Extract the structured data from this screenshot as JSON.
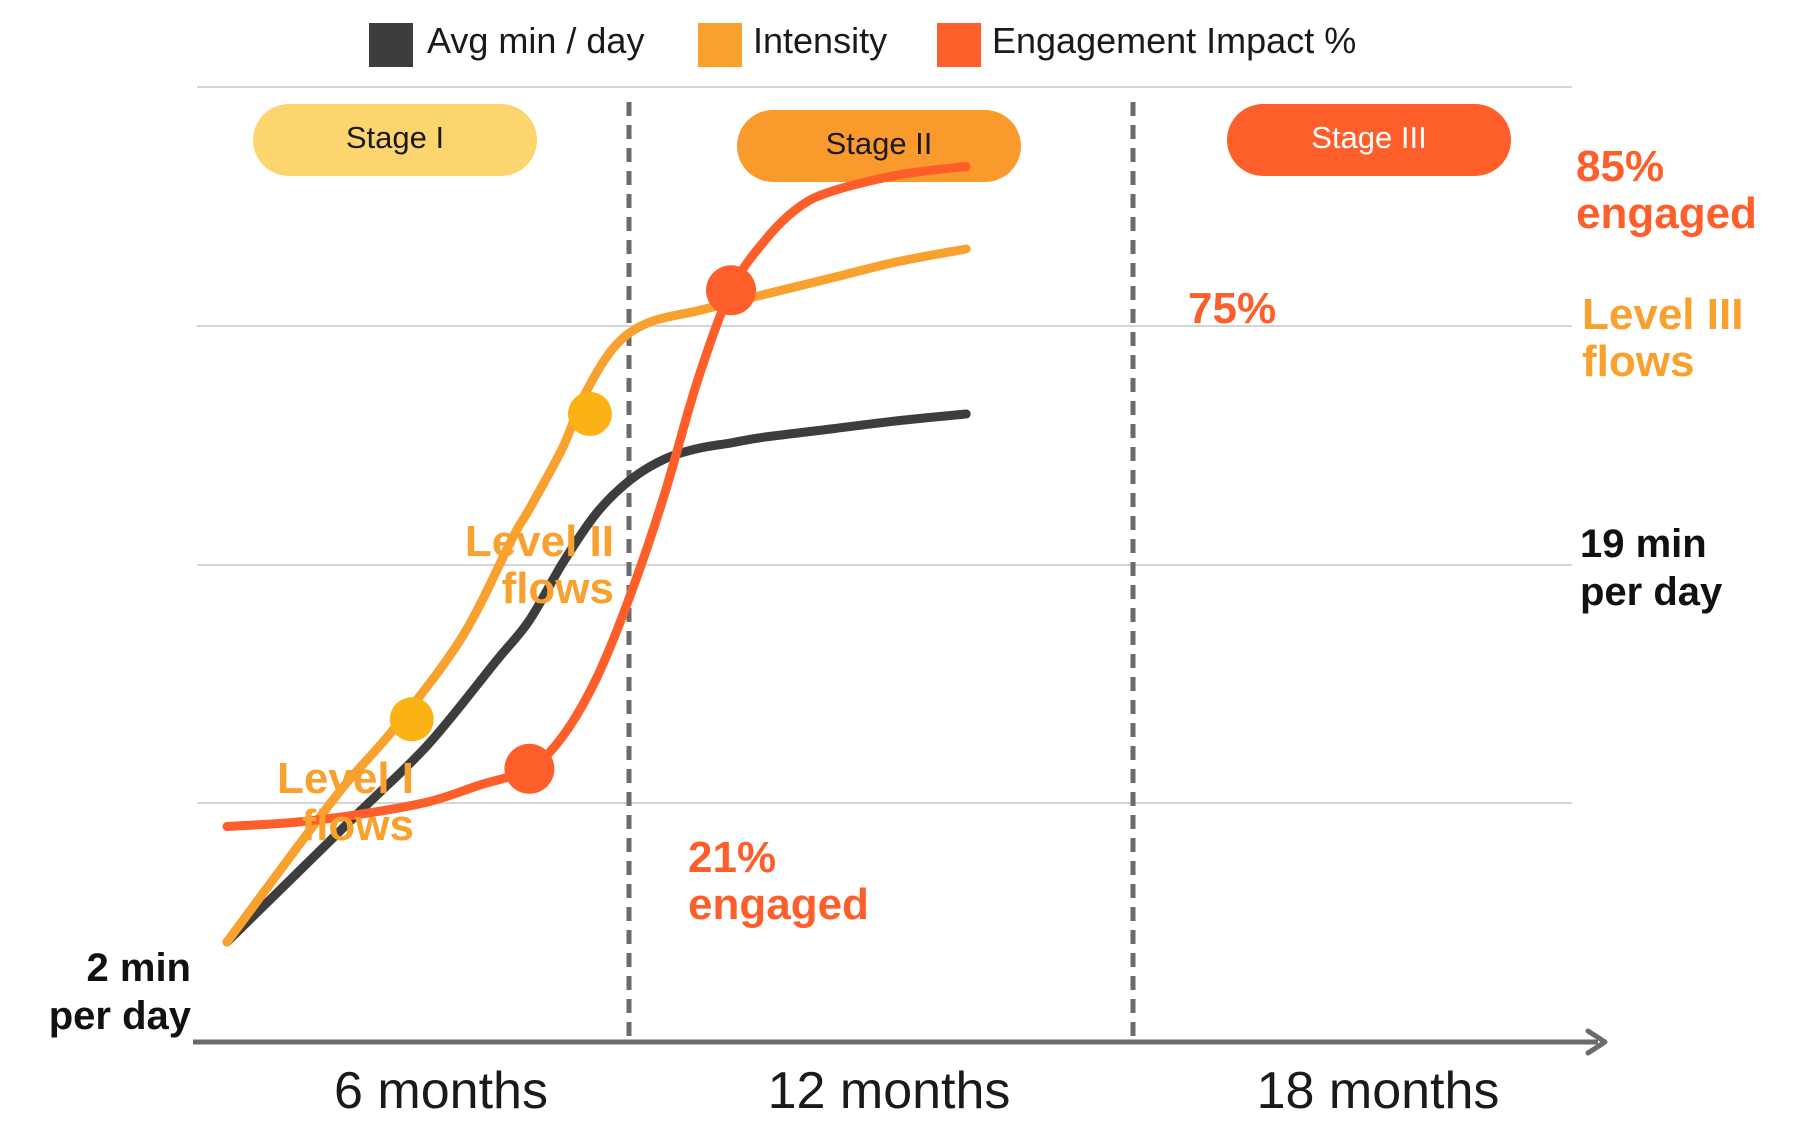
{
  "legend": [
    {
      "label": "Avg min / day",
      "color": "#3d3d3d"
    },
    {
      "label": "Intensity",
      "color": "#f9a12e"
    },
    {
      "label": "Engagement Impact %",
      "color": "#fe5f2a"
    }
  ],
  "stages": [
    {
      "label": "Stage I",
      "fill": "#fdd56e",
      "text_color": "#1a1a1a"
    },
    {
      "label": "Stage II",
      "fill": "#fb9a2c",
      "text_color": "#1a1a1a"
    },
    {
      "label": "Stage III",
      "fill": "#fe5f2a",
      "text_color": "#ffffff"
    }
  ],
  "x_ticks": [
    "6 months",
    "12 months",
    "18 months"
  ],
  "annotations": {
    "start_min": [
      "2 min",
      "per day"
    ],
    "end_min": [
      "19 min",
      "per day"
    ],
    "level1": [
      "Level I",
      "flows"
    ],
    "level2": [
      "Level II",
      "flows"
    ],
    "level3": [
      "Level III",
      "flows"
    ],
    "eng21": [
      "21%",
      "engaged"
    ],
    "eng75": "75%",
    "eng85": [
      "85%",
      "engaged"
    ]
  },
  "chart_data": {
    "type": "line",
    "x_axis_ticks": [
      "6 months",
      "12 months",
      "18 months"
    ],
    "y_range": [
      0,
      100
    ],
    "grid": "horizontal",
    "legend_position": "top",
    "stage_dividers_months": [
      9,
      15
    ],
    "series": [
      {
        "name": "Avg min / day",
        "color": "#3d3d3d",
        "values": [
          [
            0,
            8
          ],
          [
            2,
            16
          ],
          [
            4,
            24
          ],
          [
            6,
            32
          ],
          [
            8,
            42
          ],
          [
            9,
            47
          ],
          [
            10,
            54
          ],
          [
            11,
            60
          ],
          [
            12,
            64
          ],
          [
            13,
            66.5
          ],
          [
            14,
            67.8
          ],
          [
            15,
            68.5
          ],
          [
            16,
            69.2
          ],
          [
            18,
            70.2
          ],
          [
            20,
            71.2
          ],
          [
            22,
            72
          ]
        ]
      },
      {
        "name": "Intensity",
        "color": "#f9a12e",
        "values": [
          [
            0,
            8
          ],
          [
            2,
            19
          ],
          [
            3.5,
            27
          ],
          [
            5,
            34
          ],
          [
            7,
            45
          ],
          [
            8.5,
            57
          ],
          [
            9,
            60.5
          ],
          [
            10,
            68
          ],
          [
            10.6,
            74
          ],
          [
            11.5,
            80
          ],
          [
            12.5,
            83
          ],
          [
            14,
            84.5
          ],
          [
            15,
            85.5
          ],
          [
            16,
            86.5
          ],
          [
            18,
            88.5
          ],
          [
            20,
            90.5
          ],
          [
            22,
            92
          ]
        ]
      },
      {
        "name": "Engagement Impact %",
        "color": "#fe5f2a",
        "values": [
          [
            0,
            22
          ],
          [
            2,
            22.5
          ],
          [
            4,
            23.5
          ],
          [
            6,
            25
          ],
          [
            7.5,
            27
          ],
          [
            9,
            29
          ],
          [
            10,
            33
          ],
          [
            11,
            40
          ],
          [
            12,
            50
          ],
          [
            13,
            62
          ],
          [
            14,
            76
          ],
          [
            15,
            87
          ],
          [
            16,
            93
          ],
          [
            17,
            97
          ],
          [
            18,
            99
          ],
          [
            20,
            101
          ],
          [
            22,
            102
          ]
        ]
      }
    ],
    "markers": [
      {
        "series": "Intensity",
        "x": 5.5,
        "y": 35
      },
      {
        "series": "Intensity",
        "x": 10.8,
        "y": 72
      },
      {
        "series": "Engagement Impact %",
        "x": 9,
        "y": 29
      },
      {
        "series": "Engagement Impact %",
        "x": 15,
        "y": 87
      }
    ]
  }
}
